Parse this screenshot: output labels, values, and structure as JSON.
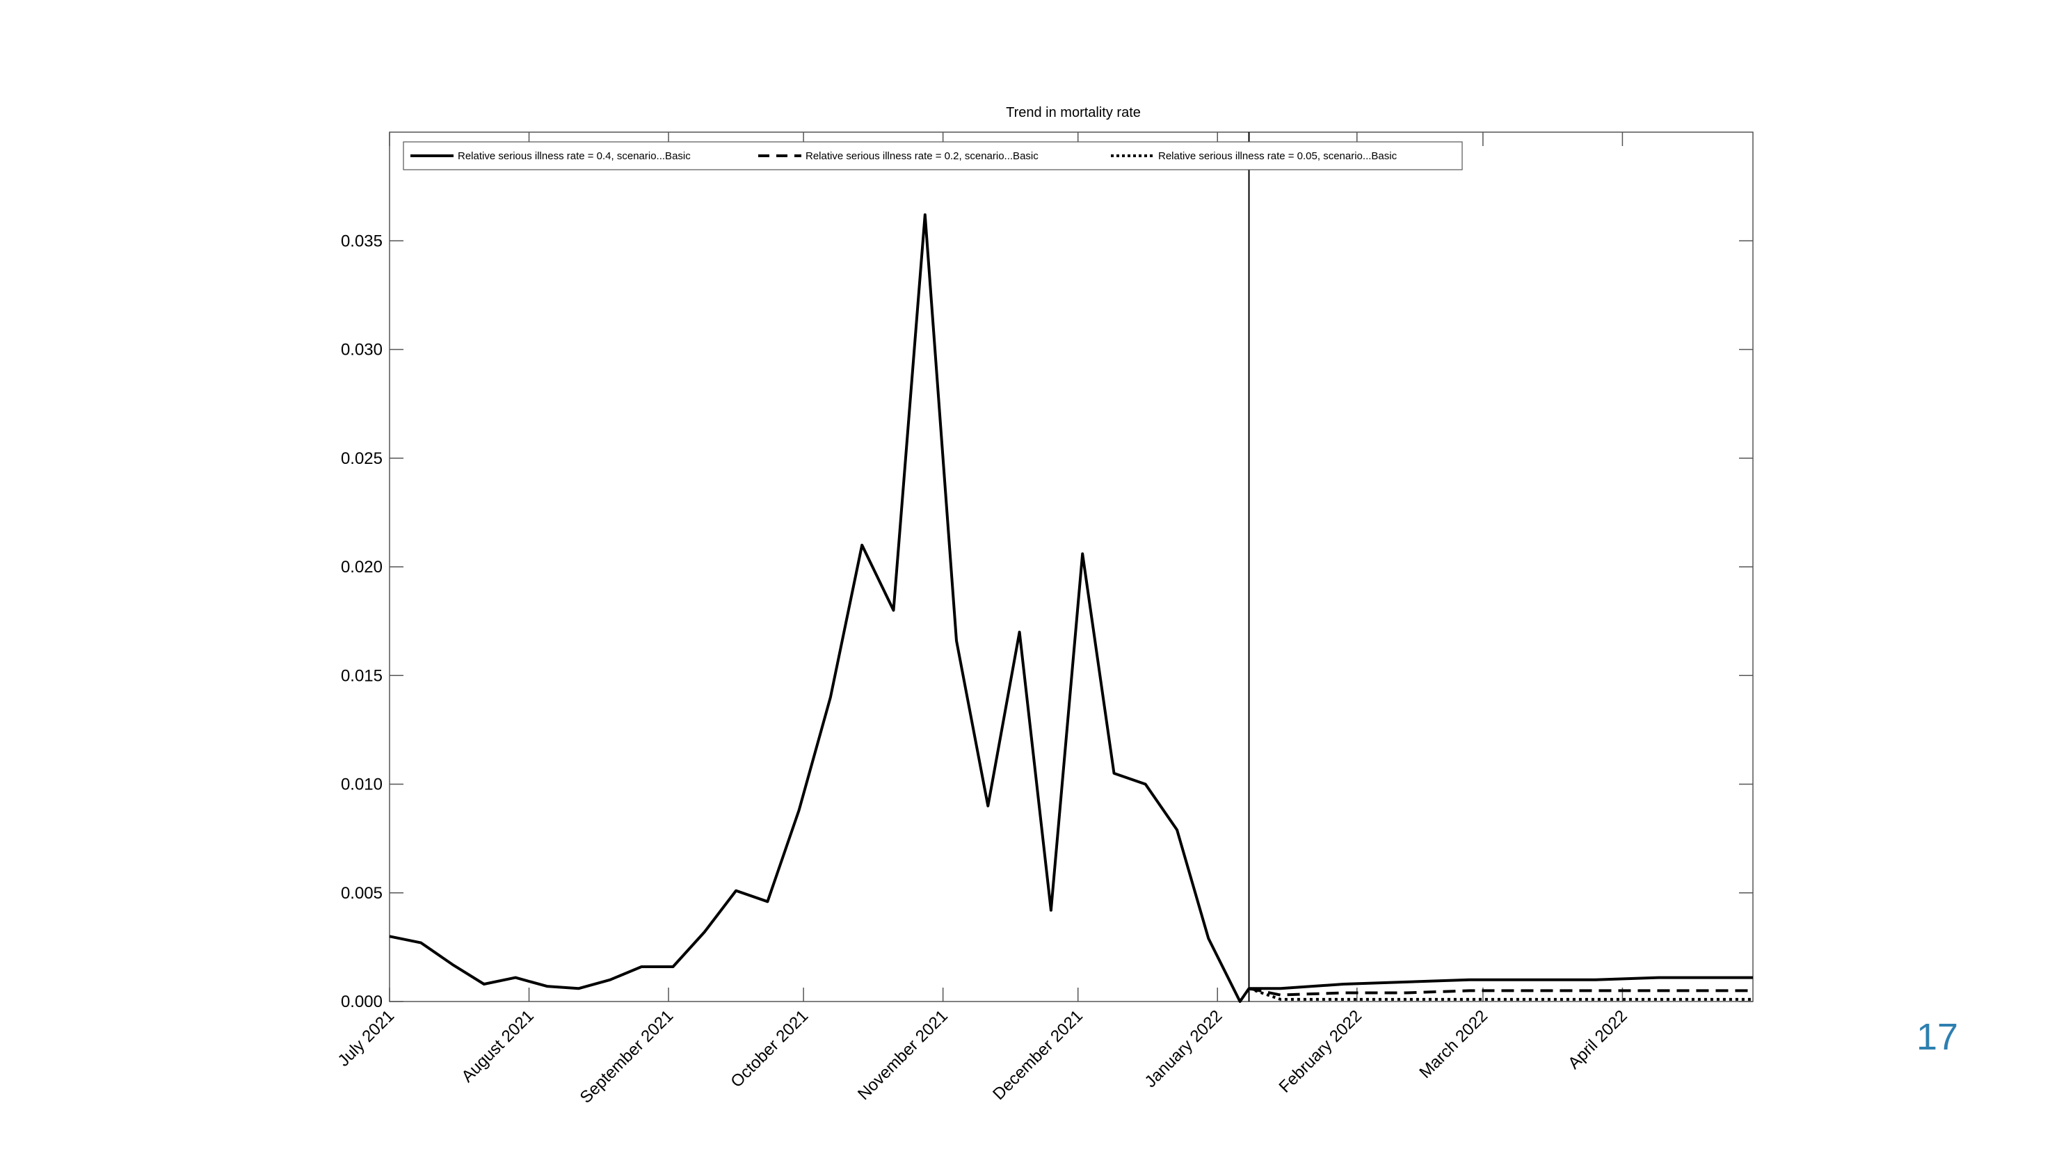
{
  "slide": {
    "page_number": "17"
  },
  "chart_data": {
    "type": "line",
    "title": "Trend in mortality rate",
    "xlabel": "",
    "ylabel": "",
    "ylim": [
      0,
      0.04
    ],
    "xlim": [
      "2021-07-01",
      "2022-04-30"
    ],
    "grid": false,
    "legend": "top-left, horizontal",
    "y_ticks": [
      "0.000",
      "0.005",
      "0.010",
      "0.015",
      "0.020",
      "0.025",
      "0.030",
      "0.035"
    ],
    "x_ticks": [
      {
        "date": "2021-07-01",
        "label": "July 2021"
      },
      {
        "date": "2021-08-01",
        "label": "August 2021"
      },
      {
        "date": "2021-09-01",
        "label": "September 2021"
      },
      {
        "date": "2021-10-01",
        "label": "October 2021"
      },
      {
        "date": "2021-11-01",
        "label": "November 2021"
      },
      {
        "date": "2021-12-01",
        "label": "December 2021"
      },
      {
        "date": "2022-01-01",
        "label": "January 2022"
      },
      {
        "date": "2022-02-01",
        "label": "February 2022"
      },
      {
        "date": "2022-03-01",
        "label": "March 2022"
      },
      {
        "date": "2022-04-01",
        "label": "April 2022"
      }
    ],
    "vertical_marker": "2022-01-08",
    "series": [
      {
        "name": "Relative serious illness rate = 0.4, scenario...Basic",
        "style": "solid",
        "x": [
          "2021-07-01",
          "2021-07-08",
          "2021-07-15",
          "2021-07-22",
          "2021-07-29",
          "2021-08-05",
          "2021-08-12",
          "2021-08-19",
          "2021-08-26",
          "2021-09-02",
          "2021-09-09",
          "2021-09-16",
          "2021-09-23",
          "2021-09-30",
          "2021-10-07",
          "2021-10-14",
          "2021-10-21",
          "2021-10-28",
          "2021-11-04",
          "2021-11-11",
          "2021-11-18",
          "2021-11-25",
          "2021-12-02",
          "2021-12-09",
          "2021-12-16",
          "2021-12-23",
          "2021-12-30",
          "2022-01-06",
          "2022-01-08",
          "2022-01-15",
          "2022-01-29",
          "2022-02-12",
          "2022-02-26",
          "2022-03-12",
          "2022-03-26",
          "2022-04-09",
          "2022-04-30"
        ],
        "values": [
          0.003,
          0.0027,
          0.0017,
          0.0008,
          0.0011,
          0.0007,
          0.0006,
          0.001,
          0.0016,
          0.0016,
          0.0032,
          0.0051,
          0.0046,
          0.0088,
          0.014,
          0.021,
          0.018,
          0.0362,
          0.0166,
          0.009,
          0.017,
          0.0042,
          0.0206,
          0.0105,
          0.01,
          0.0079,
          0.0029,
          0.0,
          0.0006,
          0.0006,
          0.0008,
          0.0009,
          0.001,
          0.001,
          0.001,
          0.0011,
          0.0011
        ]
      },
      {
        "name": "Relative serious illness rate = 0.2, scenario...Basic",
        "style": "dashed",
        "x": [
          "2022-01-08",
          "2022-01-15",
          "2022-01-29",
          "2022-02-12",
          "2022-02-26",
          "2022-03-12",
          "2022-03-26",
          "2022-04-09",
          "2022-04-30"
        ],
        "values": [
          0.0006,
          0.0003,
          0.0004,
          0.0004,
          0.0005,
          0.0005,
          0.0005,
          0.0005,
          0.0005
        ]
      },
      {
        "name": "Relative serious illness rate = 0.05, scenario...Basic",
        "style": "dotted",
        "x": [
          "2022-01-08",
          "2022-01-15",
          "2022-01-29",
          "2022-02-12",
          "2022-02-26",
          "2022-03-12",
          "2022-03-26",
          "2022-04-09",
          "2022-04-30"
        ],
        "values": [
          0.0006,
          0.0001,
          0.0001,
          0.0001,
          0.0001,
          0.0001,
          0.0001,
          0.0001,
          0.0001
        ]
      }
    ]
  }
}
